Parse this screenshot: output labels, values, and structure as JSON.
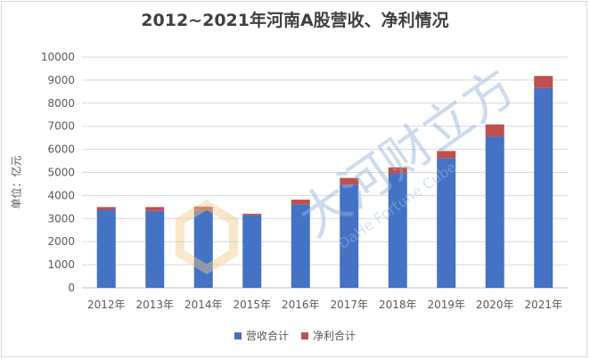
{
  "chart_data": {
    "type": "bar",
    "stacked": true,
    "title": "2012~2021年河南A股营收、净利情况",
    "ylabel": "单位：亿元",
    "xlabel": "",
    "categories": [
      "2012年",
      "2013年",
      "2014年",
      "2015年",
      "2016年",
      "2017年",
      "2018年",
      "2019年",
      "2020年",
      "2021年"
    ],
    "series": [
      {
        "name": "营收合计",
        "color": "#4472c4",
        "values": [
          3380,
          3330,
          3350,
          3130,
          3620,
          4470,
          4960,
          5610,
          6560,
          8660
        ]
      },
      {
        "name": "净利合计",
        "color": "#c0504d",
        "values": [
          120,
          170,
          170,
          80,
          200,
          290,
          260,
          320,
          520,
          520
        ]
      }
    ],
    "ylim": [
      0,
      10000
    ],
    "yticks": [
      0,
      1000,
      2000,
      3000,
      4000,
      5000,
      6000,
      7000,
      8000,
      9000,
      10000
    ],
    "grid": true,
    "legend": "bottom"
  },
  "watermark": {
    "text_cn": "大河财立方",
    "text_en": "DaHe Fortune Cube",
    "color": "#8fb1d9"
  }
}
